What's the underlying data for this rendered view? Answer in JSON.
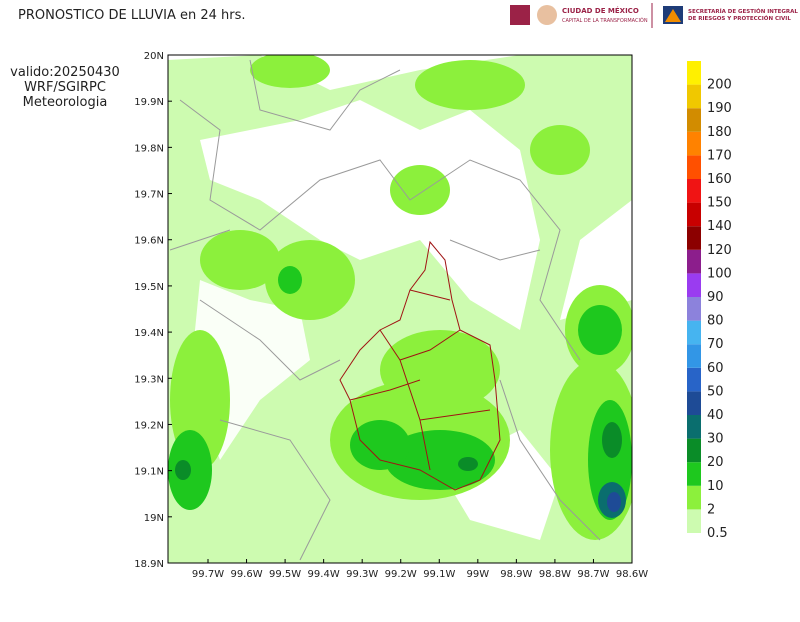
{
  "header": {
    "title": "PRONOSTICO DE LLUVIA en 24 hrs.",
    "logo_city": [
      "CIUDAD DE MÉXICO",
      "CAPITAL DE LA TRANSFORMACIÓN"
    ],
    "logo_agency": [
      "SECRETARÍA DE GESTIÓN INTEGRAL",
      "DE RIESGOS Y PROTECCIÓN CIVIL"
    ]
  },
  "info": [
    "valido:20250430",
    "WRF/SGIRPC",
    "Meteorologia"
  ],
  "map": {
    "lat_labels": [
      "20N",
      "19.9N",
      "19.8N",
      "19.7N",
      "19.6N",
      "19.5N",
      "19.4N",
      "19.3N",
      "19.2N",
      "19.1N",
      "19N",
      "18.9N"
    ],
    "lon_labels": [
      "99.7W",
      "99.6W",
      "99.5W",
      "99.4W",
      "99.3W",
      "99.2W",
      "99.1W",
      "99W",
      "98.9W",
      "98.8W",
      "98.7W",
      "98.6W"
    ]
  },
  "legend": {
    "levels": [
      0.5,
      2,
      10,
      20,
      30,
      40,
      50,
      60,
      70,
      80,
      90,
      100,
      120,
      140,
      150,
      160,
      170,
      180,
      190,
      200
    ],
    "colors": [
      "#cdfbb0",
      "#8cf03c",
      "#1ec81e",
      "#0a8c28",
      "#0a6e6e",
      "#1e4b96",
      "#2864c8",
      "#3296e6",
      "#46b4f0",
      "#8c82dc",
      "#9a3cf0",
      "#8c1e8c",
      "#8c0000",
      "#c80000",
      "#f01414",
      "#ff5000",
      "#ff8200",
      "#d28c00",
      "#f0c800",
      "#fff000"
    ]
  }
}
